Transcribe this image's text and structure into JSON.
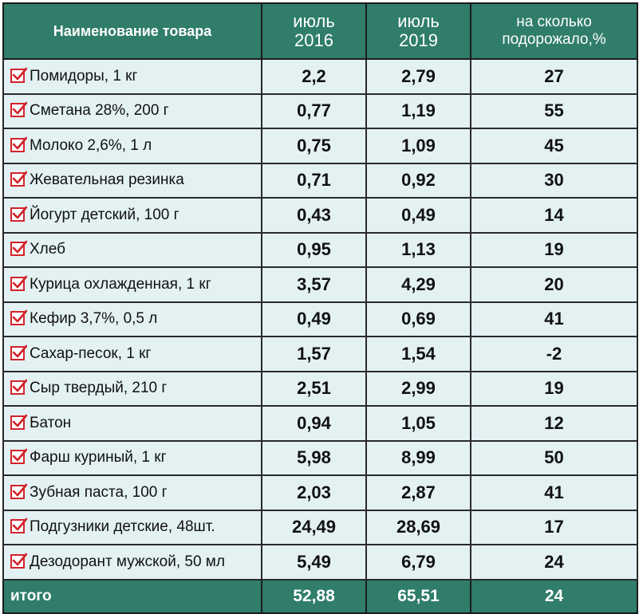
{
  "colors": {
    "header_bg": "#2f7d6a",
    "row_bg": "#e3f1f3",
    "checkbox": "#d2232a"
  },
  "header": {
    "name": "Наименование товара",
    "y2016_line1": "июль",
    "y2016_line2": "2016",
    "y2019_line1": "июль",
    "y2019_line2": "2019",
    "pct_line1": "на сколько",
    "pct_line2": "подорожало,%"
  },
  "rows": [
    {
      "name": "Помидоры, 1 кг",
      "y2016": "2,2",
      "y2019": "2,79",
      "pct": "27"
    },
    {
      "name": "Сметана 28%, 200 г",
      "y2016": "0,77",
      "y2019": "1,19",
      "pct": "55"
    },
    {
      "name": "Молоко 2,6%, 1 л",
      "y2016": "0,75",
      "y2019": "1,09",
      "pct": "45"
    },
    {
      "name": "Жевательная резинка",
      "y2016": "0,71",
      "y2019": "0,92",
      "pct": "30"
    },
    {
      "name": "Йогурт детский, 100 г",
      "y2016": "0,43",
      "y2019": "0,49",
      "pct": "14"
    },
    {
      "name": "Хлеб",
      "y2016": "0,95",
      "y2019": "1,13",
      "pct": "19"
    },
    {
      "name": "Курица охлажденная, 1 кг",
      "y2016": "3,57",
      "y2019": "4,29",
      "pct": "20"
    },
    {
      "name": "Кефир 3,7%, 0,5 л",
      "y2016": "0,49",
      "y2019": "0,69",
      "pct": "41"
    },
    {
      "name": "Сахар-песок, 1 кг",
      "y2016": "1,57",
      "y2019": "1,54",
      "pct": "-2"
    },
    {
      "name": "Сыр твердый, 210 г",
      "y2016": "2,51",
      "y2019": "2,99",
      "pct": "19"
    },
    {
      "name": "Батон",
      "y2016": "0,94",
      "y2019": "1,05",
      "pct": "12"
    },
    {
      "name": "Фарш куриный, 1 кг",
      "y2016": "5,98",
      "y2019": "8,99",
      "pct": "50"
    },
    {
      "name": "Зубная паста, 100 г",
      "y2016": "2,03",
      "y2019": "2,87",
      "pct": "41"
    },
    {
      "name": "Подгузники детские, 48шт.",
      "y2016": "24,49",
      "y2019": "28,69",
      "pct": "17"
    },
    {
      "name": "Дезодорант мужской, 50 мл",
      "y2016": "5,49",
      "y2019": "6,79",
      "pct": "24"
    }
  ],
  "total": {
    "label": "итого",
    "y2016": "52,88",
    "y2019": "65,51",
    "pct": "24"
  },
  "chart_data": {
    "type": "table",
    "columns": [
      "Наименование товара",
      "июль 2016",
      "июль 2019",
      "на сколько подорожало,%"
    ],
    "rows": [
      [
        "Помидоры, 1 кг",
        2.2,
        2.79,
        27
      ],
      [
        "Сметана 28%, 200 г",
        0.77,
        1.19,
        55
      ],
      [
        "Молоко 2,6%, 1 л",
        0.75,
        1.09,
        45
      ],
      [
        "Жевательная резинка",
        0.71,
        0.92,
        30
      ],
      [
        "Йогурт детский, 100 г",
        0.43,
        0.49,
        14
      ],
      [
        "Хлеб",
        0.95,
        1.13,
        19
      ],
      [
        "Курица охлажденная, 1 кг",
        3.57,
        4.29,
        20
      ],
      [
        "Кефир 3,7%, 0,5 л",
        0.49,
        0.69,
        41
      ],
      [
        "Сахар-песок, 1 кг",
        1.57,
        1.54,
        -2
      ],
      [
        "Сыр твердый, 210 г",
        2.51,
        2.99,
        19
      ],
      [
        "Батон",
        0.94,
        1.05,
        12
      ],
      [
        "Фарш куриный, 1 кг",
        5.98,
        8.99,
        50
      ],
      [
        "Зубная паста, 100 г",
        2.03,
        2.87,
        41
      ],
      [
        "Подгузники детские, 48шт.",
        24.49,
        28.69,
        17
      ],
      [
        "Дезодорант мужской, 50 мл",
        5.49,
        6.79,
        24
      ]
    ],
    "total": [
      "итого",
      52.88,
      65.51,
      24
    ]
  }
}
